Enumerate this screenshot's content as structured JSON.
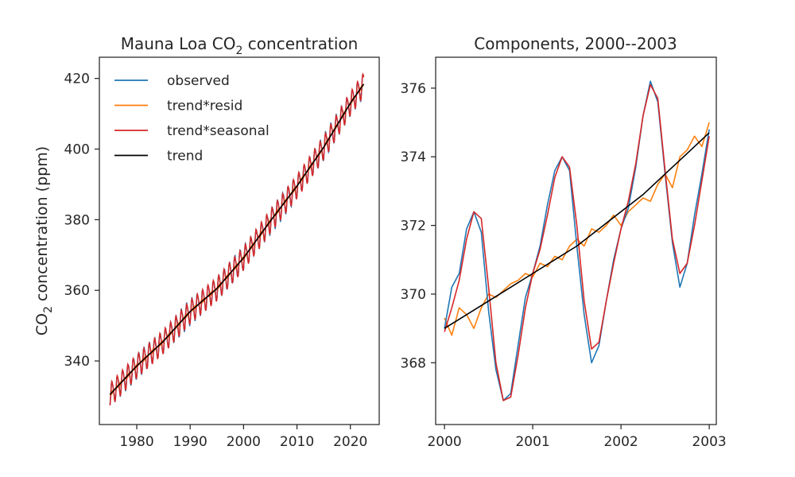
{
  "chart_data": [
    {
      "type": "line",
      "title": "Mauna Loa CO",
      "title_sub": "2",
      "title_rest": " concentration",
      "ylabel": "CO",
      "ylabel_sub": "2",
      "ylabel_rest": " concentration (ppm)",
      "xlabel": "",
      "xlim": [
        1973,
        2025.4
      ],
      "ylim": [
        322,
        426
      ],
      "xticks": [
        1980,
        1990,
        2000,
        2010,
        2020
      ],
      "yticks": [
        340,
        360,
        380,
        400,
        420
      ],
      "legend_position": "top-left",
      "grid": false,
      "trend": {
        "x": [
          1975,
          1980,
          1985,
          1990,
          1995,
          2000,
          2005,
          2010,
          2015,
          2020,
          2022.5
        ],
        "y": [
          330.5,
          338.6,
          345.6,
          354.0,
          360.5,
          369.2,
          379.6,
          389.5,
          400.5,
          413.0,
          418.4
        ]
      },
      "seasonal_amplitude": 3.2,
      "series": [
        {
          "name": "observed",
          "color": "#1f77b4"
        },
        {
          "name": "trend*resid",
          "color": "#ff7f0e"
        },
        {
          "name": "trend*seasonal",
          "color": "#d62728"
        },
        {
          "name": "trend",
          "color": "#000000"
        }
      ]
    },
    {
      "type": "line",
      "title": "Components, 2000--2003",
      "xlabel": "",
      "ylabel": "",
      "xlim": [
        1999.9,
        2003.08
      ],
      "ylim": [
        366.2,
        376.9
      ],
      "xticks": [
        2000,
        2001,
        2002,
        2003
      ],
      "yticks": [
        368,
        370,
        372,
        374,
        376
      ],
      "grid": false,
      "series": [
        {
          "name": "observed",
          "color": "#1f77b4",
          "x": [
            2000.0,
            2000.083,
            2000.167,
            2000.25,
            2000.333,
            2000.417,
            2000.5,
            2000.583,
            2000.667,
            2000.75,
            2000.833,
            2000.917,
            2001.0,
            2001.083,
            2001.167,
            2001.25,
            2001.333,
            2001.417,
            2001.5,
            2001.583,
            2001.667,
            2001.75,
            2001.833,
            2001.917,
            2002.0,
            2002.083,
            2002.167,
            2002.25,
            2002.333,
            2002.417,
            2002.5,
            2002.583,
            2002.667,
            2002.75,
            2002.833,
            2002.917,
            2003.0
          ],
          "y": [
            369.0,
            370.2,
            370.6,
            371.9,
            372.4,
            371.8,
            369.5,
            367.8,
            366.9,
            367.1,
            368.5,
            369.9,
            370.6,
            371.4,
            372.6,
            373.6,
            374.0,
            373.6,
            371.4,
            369.4,
            368.0,
            368.5,
            369.8,
            371.0,
            371.9,
            372.5,
            373.7,
            375.2,
            376.2,
            375.6,
            373.5,
            371.5,
            370.2,
            370.9,
            372.3,
            373.5,
            374.8
          ]
        },
        {
          "name": "trend*resid",
          "color": "#ff7f0e",
          "x": [
            2000.0,
            2000.083,
            2000.167,
            2000.25,
            2000.333,
            2000.417,
            2000.5,
            2000.583,
            2000.667,
            2000.75,
            2000.833,
            2000.917,
            2001.0,
            2001.083,
            2001.167,
            2001.25,
            2001.333,
            2001.417,
            2001.5,
            2001.583,
            2001.667,
            2001.75,
            2001.833,
            2001.917,
            2002.0,
            2002.083,
            2002.167,
            2002.25,
            2002.333,
            2002.417,
            2002.5,
            2002.583,
            2002.667,
            2002.75,
            2002.833,
            2002.917,
            2003.0
          ],
          "y": [
            369.3,
            368.8,
            369.6,
            369.4,
            369.0,
            369.6,
            370.0,
            369.9,
            370.1,
            370.3,
            370.4,
            370.6,
            370.5,
            370.9,
            370.8,
            371.1,
            371.0,
            371.4,
            371.6,
            371.4,
            371.9,
            371.8,
            372.0,
            372.3,
            372.0,
            372.4,
            372.6,
            372.8,
            372.7,
            373.2,
            373.5,
            373.1,
            374.0,
            374.2,
            374.6,
            374.3,
            375.0
          ]
        },
        {
          "name": "trend*seasonal",
          "color": "#d62728",
          "x": [
            2000.0,
            2000.083,
            2000.167,
            2000.25,
            2000.333,
            2000.417,
            2000.5,
            2000.583,
            2000.667,
            2000.75,
            2000.833,
            2000.917,
            2001.0,
            2001.083,
            2001.167,
            2001.25,
            2001.333,
            2001.417,
            2001.5,
            2001.583,
            2001.667,
            2001.75,
            2001.833,
            2001.917,
            2002.0,
            2002.083,
            2002.167,
            2002.25,
            2002.333,
            2002.417,
            2002.5,
            2002.583,
            2002.667,
            2002.75,
            2002.833,
            2002.917,
            2003.0
          ],
          "y": [
            368.9,
            369.6,
            370.4,
            371.6,
            372.4,
            372.2,
            370.2,
            368.0,
            366.9,
            367.0,
            368.2,
            369.6,
            370.6,
            371.3,
            372.3,
            373.4,
            374.0,
            373.7,
            372.0,
            369.8,
            368.4,
            368.6,
            369.8,
            370.9,
            371.9,
            372.7,
            373.8,
            375.2,
            376.1,
            375.7,
            373.6,
            371.6,
            370.6,
            370.9,
            372.0,
            373.3,
            374.6
          ]
        },
        {
          "name": "trend",
          "color": "#000000",
          "x": [
            2000.0,
            2000.25,
            2000.5,
            2000.75,
            2001.0,
            2001.25,
            2001.5,
            2001.75,
            2002.0,
            2002.25,
            2002.5,
            2002.75,
            2003.0
          ],
          "y": [
            369.0,
            369.4,
            369.8,
            370.2,
            370.6,
            371.0,
            371.4,
            371.9,
            372.4,
            372.9,
            373.5,
            374.1,
            374.7
          ]
        }
      ]
    }
  ]
}
